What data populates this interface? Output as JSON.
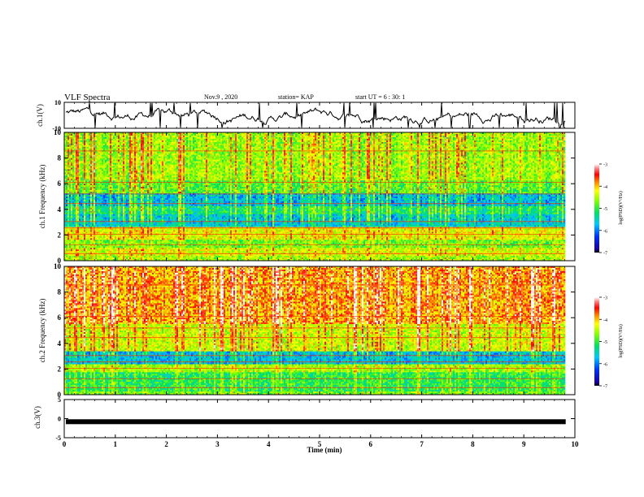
{
  "header": {
    "title": "VLF Spectra",
    "date": "Nov.9 , 2020",
    "station": "station= KAP",
    "start": "start UT = 6 : 30: 1"
  },
  "chart_data": [
    {
      "type": "line",
      "panel": "waveform-ch1",
      "ylabel": "ch.1(V)",
      "ylim": [
        -10,
        10
      ],
      "yticks": [
        "10",
        "-10"
      ],
      "xlim": [
        0,
        10
      ],
      "color": "#000000"
    },
    {
      "type": "heatmap",
      "panel": "spectrogram-ch1",
      "ylabel": "ch.1 Frequency (kHz)",
      "ylim": [
        0,
        10
      ],
      "yticks": [
        "0",
        "2",
        "4",
        "6",
        "8",
        "10"
      ],
      "xlim": [
        0,
        9.8
      ],
      "colorbar": {
        "label": "log(PSD)(V²/Hz)",
        "range": [
          -7,
          -3
        ],
        "ticks": [
          "-3",
          "-4",
          "-5",
          "-6",
          "-7"
        ]
      },
      "bands_by_frequency_kHz": [
        {
          "from": 0,
          "to": 0.4,
          "level": -4.6
        },
        {
          "from": 0.4,
          "to": 1.0,
          "level": -4.4
        },
        {
          "from": 1.0,
          "to": 1.6,
          "level": -4.8
        },
        {
          "from": 1.6,
          "to": 2.6,
          "level": -4.3
        },
        {
          "from": 2.6,
          "to": 3.6,
          "level": -5.6
        },
        {
          "from": 3.6,
          "to": 4.2,
          "level": -5.2
        },
        {
          "from": 4.2,
          "to": 5.2,
          "level": -5.7
        },
        {
          "from": 5.2,
          "to": 6.2,
          "level": -4.9
        },
        {
          "from": 6.2,
          "to": 10,
          "level": -4.6
        }
      ]
    },
    {
      "type": "heatmap",
      "panel": "spectrogram-ch2",
      "ylabel": "ch.2 Frequency (kHz)",
      "ylim": [
        0,
        10
      ],
      "yticks": [
        "0",
        "2",
        "4",
        "6",
        "8",
        "10"
      ],
      "xlim": [
        0,
        9.8
      ],
      "colorbar": {
        "label": "log(PSD)(V²/Hz)",
        "range": [
          -7,
          -3
        ],
        "ticks": [
          "-3",
          "-4",
          "-5",
          "-6",
          "-7"
        ]
      },
      "bands_by_frequency_kHz": [
        {
          "from": 0,
          "to": 0.3,
          "level": -4.8
        },
        {
          "from": 0.3,
          "to": 1.8,
          "level": -5.1
        },
        {
          "from": 1.8,
          "to": 2.4,
          "level": -4.6
        },
        {
          "from": 2.4,
          "to": 3.4,
          "level": -5.7
        },
        {
          "from": 3.4,
          "to": 5.5,
          "level": -4.4
        },
        {
          "from": 5.5,
          "to": 10,
          "level": -3.9
        }
      ]
    },
    {
      "type": "line",
      "panel": "waveform-ch3",
      "ylabel": "ch.3(V)",
      "ylim": [
        -5,
        5
      ],
      "yticks": [
        "5",
        "0",
        "-5"
      ],
      "xlim": [
        0,
        10
      ],
      "level": -0.8,
      "color": "#000000"
    }
  ],
  "xaxis": {
    "label": "Time (min)",
    "range": [
      0,
      10
    ],
    "ticks": [
      "0",
      "1",
      "2",
      "3",
      "4",
      "5",
      "6",
      "7",
      "8",
      "9",
      "10"
    ]
  }
}
